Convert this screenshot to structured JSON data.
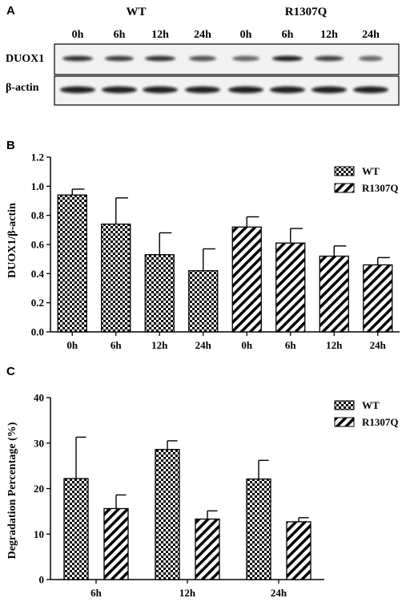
{
  "panels": {
    "a": {
      "letter": "A"
    },
    "b": {
      "letter": "B"
    },
    "c": {
      "letter": "C"
    }
  },
  "blot": {
    "groups": [
      "WT",
      "R1307Q"
    ],
    "lanes": [
      "0h",
      "6h",
      "12h",
      "24h",
      "0h",
      "6h",
      "12h",
      "24h"
    ],
    "rows": [
      "DUOX1",
      "β-actin"
    ]
  },
  "chart_data": [
    {
      "type": "bar",
      "categories": [
        "0h",
        "6h",
        "12h",
        "24h",
        "0h",
        "6h",
        "12h",
        "24h"
      ],
      "series": [
        {
          "name": "WT",
          "values": [
            0.94,
            0.74,
            0.53,
            0.42,
            null,
            null,
            null,
            null
          ],
          "errors": [
            0.04,
            0.18,
            0.15,
            0.15,
            null,
            null,
            null,
            null
          ],
          "pattern": "checker"
        },
        {
          "name": "R1307Q",
          "values": [
            null,
            null,
            null,
            null,
            0.72,
            0.61,
            0.52,
            0.46
          ],
          "errors": [
            null,
            null,
            null,
            null,
            0.07,
            0.1,
            0.07,
            0.05
          ],
          "pattern": "hatch"
        }
      ],
      "ylabel": "DUOX1/β-actin",
      "ylim": [
        0,
        1.2
      ],
      "yticks": [
        "0.0",
        "0.2",
        "0.4",
        "0.6",
        "0.8",
        "1.0",
        "1.2"
      ],
      "legend": "top-right"
    },
    {
      "type": "bar",
      "categories": [
        "6h",
        "12h",
        "24h"
      ],
      "series": [
        {
          "name": "WT",
          "values": [
            22.2,
            28.6,
            22.1
          ],
          "errors": [
            9.1,
            1.9,
            4.1
          ],
          "pattern": "checker"
        },
        {
          "name": "R1307Q",
          "values": [
            15.6,
            13.3,
            12.7
          ],
          "errors": [
            3.0,
            1.8,
            0.9
          ],
          "pattern": "hatch"
        }
      ],
      "ylabel": "Degradation Percentage (%)",
      "ylim": [
        0,
        40
      ],
      "yticks": [
        "0",
        "10",
        "20",
        "30",
        "40"
      ],
      "legend": "top-right"
    }
  ]
}
